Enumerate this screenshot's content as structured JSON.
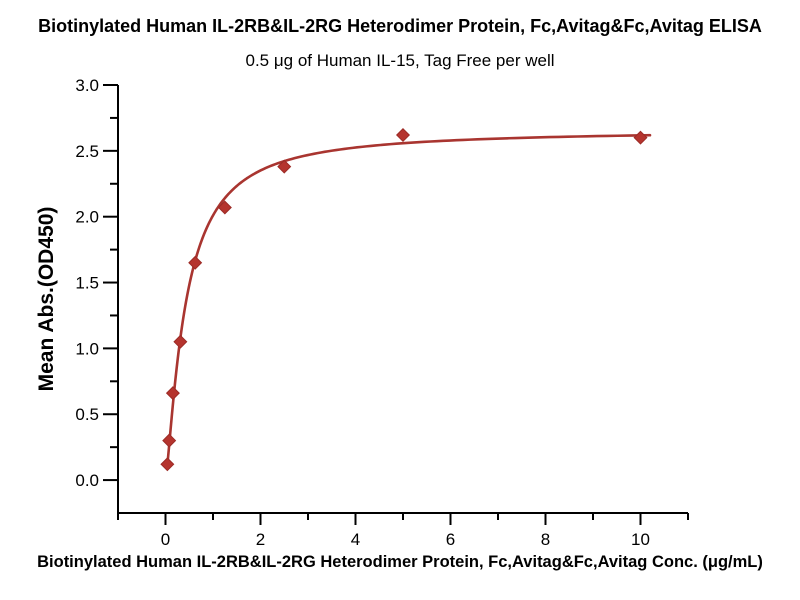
{
  "chart_data": {
    "type": "scatter",
    "title": "Biotinylated Human IL-2RB&IL-2RG Heterodimer Protein, Fc,Avitag&Fc,Avitag ELISA",
    "subtitle": "0.5 μg of Human IL-15, Tag Free per well",
    "xlabel": "Biotinylated Human IL-2RB&IL-2RG Heterodimer Protein, Fc,Avitag&Fc,Avitag Conc. (μg/mL)",
    "ylabel": "Mean Abs.(OD450)",
    "x": [
      0.039,
      0.078,
      0.156,
      0.313,
      0.625,
      1.25,
      2.5,
      5,
      10
    ],
    "y": [
      0.12,
      0.3,
      0.66,
      1.05,
      1.65,
      2.07,
      2.38,
      2.62,
      2.6
    ],
    "xlim": [
      -1,
      11
    ],
    "ylim": [
      -0.25,
      3.0
    ],
    "x_major_ticks": [
      0,
      2,
      4,
      6,
      8,
      10
    ],
    "x_minor_ticks": [
      -1,
      1,
      3,
      5,
      7,
      9,
      11
    ],
    "y_major_ticks": [
      0,
      0.5,
      1,
      1.5,
      2,
      2.5,
      3
    ],
    "y_minor_ticks": [
      0.25,
      0.75,
      1.25,
      1.75,
      2.25,
      2.75
    ],
    "y_tick_decimals": 1,
    "fit_curve": {
      "model": "4PL",
      "bottom": 0,
      "top": 2.66,
      "ec50": 0.42,
      "hill": 1.3,
      "x_start": 0.039,
      "x_end": 10.2
    },
    "marker": "diamond",
    "grid": false,
    "legend_position": "none",
    "colors": {
      "marker": "#B5342E",
      "marker_edge": "#9C2B26",
      "curve": "#A93530",
      "axis": "#000000",
      "text": "#000000",
      "background": "#ffffff"
    }
  }
}
